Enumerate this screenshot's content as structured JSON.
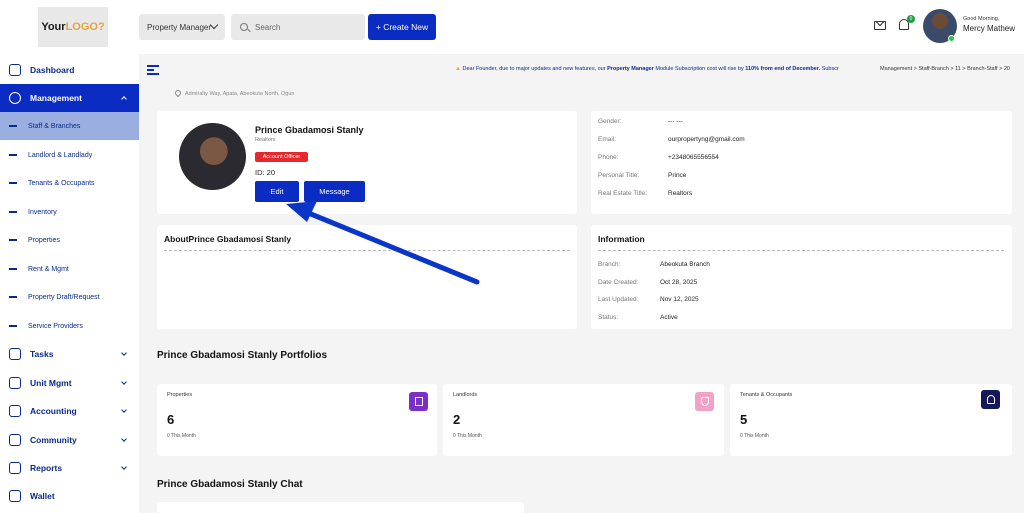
{
  "header": {
    "logo_text_a": "Your",
    "logo_text_b": "LOGO",
    "logo_text_c": "?",
    "role_select": "Property Manager",
    "search_placeholder": "Search",
    "create_label": "+ Create New",
    "notification_count": "0",
    "greeting": "Good Morning,",
    "user_name": "Mercy Mathew"
  },
  "sidebar": {
    "items": [
      {
        "label": "Dashboard"
      },
      {
        "label": "Management"
      },
      {
        "label": "Tasks"
      },
      {
        "label": "Unit Mgmt"
      },
      {
        "label": "Accounting"
      },
      {
        "label": "Community"
      },
      {
        "label": "Reports"
      },
      {
        "label": "Wallet"
      }
    ],
    "sub_items": [
      {
        "label": "Staff & Branches"
      },
      {
        "label": "Landlord & Landlady"
      },
      {
        "label": "Tenants & Occupants"
      },
      {
        "label": "Inventory"
      },
      {
        "label": "Properties"
      },
      {
        "label": "Rent & Mgmt"
      },
      {
        "label": "Property Draft/Request"
      },
      {
        "label": "Service Providers"
      }
    ]
  },
  "banner": {
    "text_a": "Dear Founder, due to major updates and new features, our",
    "text_b": "Property Manager",
    "text_c": "Module Subscription cost will rise by",
    "text_d": "110% from end of December.",
    "text_e": "Subscr"
  },
  "breadcrumb": "Management > Staff-Branch > 11 > Branch-Staff > 20",
  "address": "Admiralty Way, Apata, Abeokuta North, Ogun",
  "profile": {
    "name": "Prince Gbadamosi Stanly",
    "role": "Realtors",
    "badge": "Account Officer",
    "id": "ID: 20",
    "edit_label": "Edit",
    "message_label": "Message"
  },
  "contact": [
    {
      "label": "Gender:",
      "value": "--- ---"
    },
    {
      "label": "Email:",
      "value": "ourpropertyng@gmail.com"
    },
    {
      "label": "Phone:",
      "value": "+2348065556554"
    },
    {
      "label": "Personal Title:",
      "value": "Prince"
    },
    {
      "label": "Real Estate Title:",
      "value": "Realtors"
    }
  ],
  "about_title": "AboutPrince Gbadamosi Stanly",
  "information": {
    "title": "Information",
    "rows": [
      {
        "label": "Branch:",
        "value": "Abeokuta Branch"
      },
      {
        "label": "Date Created:",
        "value": "Oct 28, 2025"
      },
      {
        "label": "Last Updated:",
        "value": "Nov 12, 2025"
      },
      {
        "label": "Status:",
        "value": "Active"
      }
    ]
  },
  "portfolios": {
    "title": "Prince Gbadamosi Stanly Portfolios",
    "cards": [
      {
        "label": "Properties",
        "count": "6",
        "foot": "0   This Month",
        "color": "#7a2fc9"
      },
      {
        "label": "Landlords",
        "count": "2",
        "foot": "0   This Month",
        "color": "#f0a3c6"
      },
      {
        "label": "Tenants & Occupants",
        "count": "5",
        "foot": "0   This Month",
        "color": "#15185a"
      }
    ]
  },
  "chat_title": "Prince Gbadamosi Stanly Chat",
  "colors": {
    "primary": "#0a2cc2",
    "badge": "#e8262c",
    "status_online": "#27c24c"
  }
}
